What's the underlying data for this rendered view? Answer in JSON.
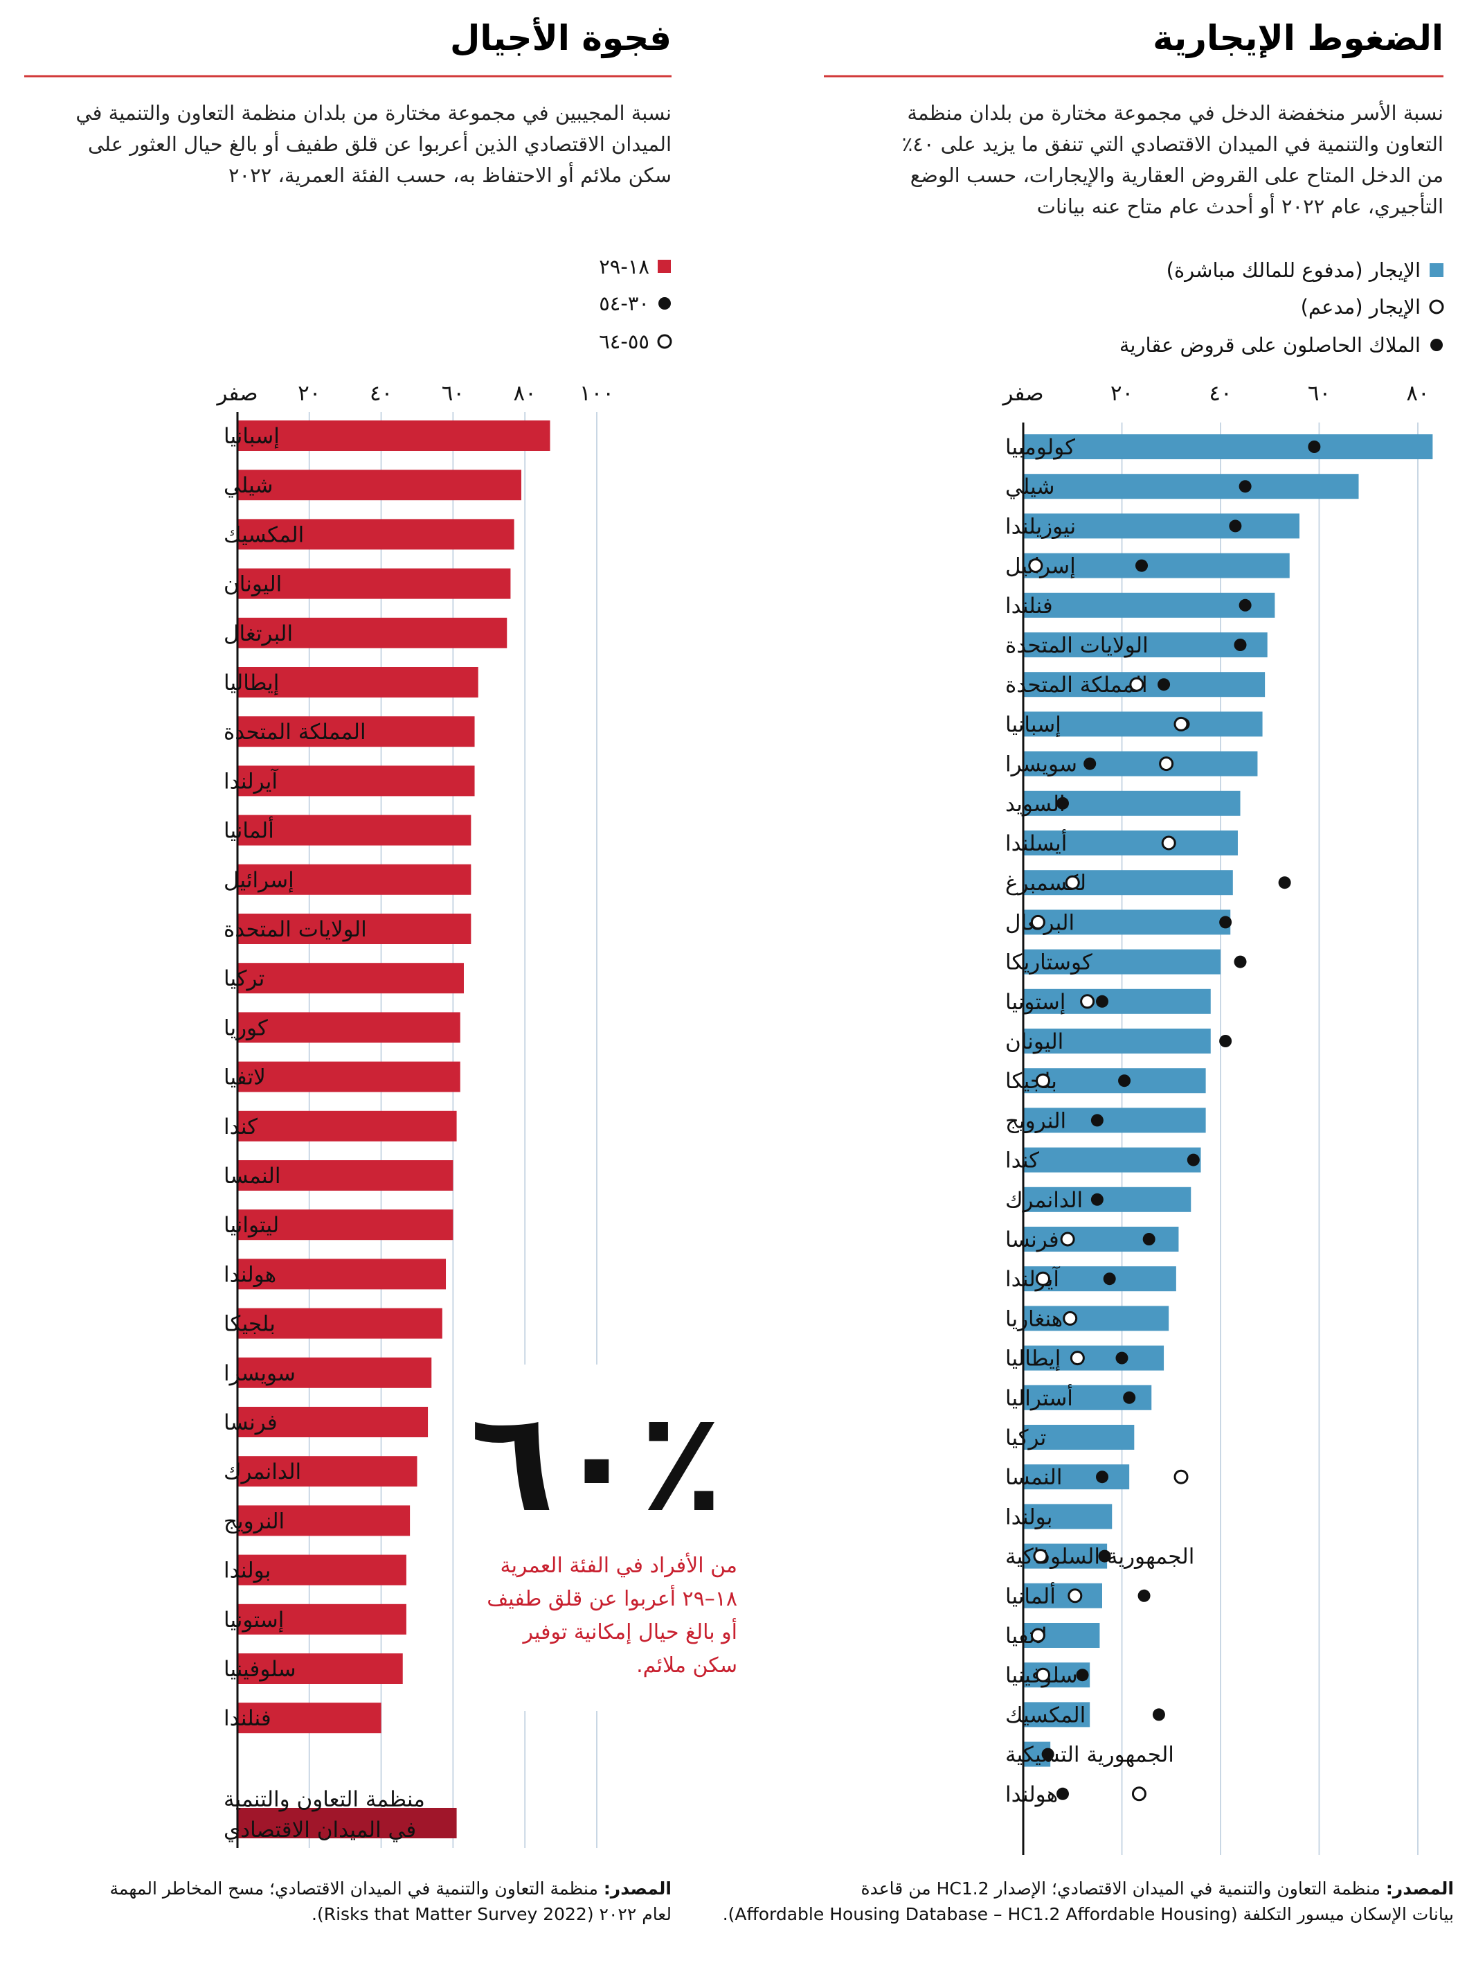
{
  "colors": {
    "rent_bar": "#4a98c2",
    "gen_bar": "#cc2336",
    "oecd_bar": "#a0162a",
    "rule": "#d23a3a",
    "grid": "#c9d7e4",
    "axis": "#111111"
  },
  "left_panel": {
    "title": "فجوة الأجيال",
    "subtitle_lines": [
      "نسبة المجيبين في مجموعة مختارة من بلدان منظمة التعاون والتنمية في",
      "الميدان الاقتصادي الذين أعربوا عن قلق طفيف أو بالغ حيال العثور على",
      "سكن ملائم أو الاحتفاظ به، حسب الفئة العمرية، ٢٠٢٢"
    ],
    "legend": [
      "١٨-٢٩",
      "٣٠-٥٤",
      "٥٥-٦٤"
    ],
    "callout": {
      "number": "٪٦٠",
      "lines": [
        "من الأفراد في الفئة العمرية",
        "١٨–٢٩ أعربوا عن قلق طفيف",
        "أو بالغ حيال إمكانية توفير",
        "سكن ملائم."
      ]
    },
    "source_label": "المصدر:",
    "source_lines": [
      "منظمة التعاون والتنمية في الميدان الاقتصادي؛ مسح المخاطر المهمة",
      "لعام ٢٠٢٢ (Risks that Matter Survey 2022)."
    ]
  },
  "right_panel": {
    "title": "الضغوط الإيجارية",
    "subtitle_lines": [
      "نسبة الأسر منخفضة الدخل في مجموعة مختارة من بلدان منظمة",
      "التعاون والتنمية في الميدان الاقتصادي التي تنفق ما يزيد على ٤٠٪",
      "من الدخل المتاح على القروض العقارية والإيجارات، حسب الوضع",
      "التأجيري، عام ٢٠٢٢ أو أحدث عام متاح عنه بيانات"
    ],
    "legend": [
      "الإيجار (مدفوع للمالك مباشرة)",
      "الإيجار (مدعم)",
      "الملاك الحاصلون على قروض عقارية"
    ],
    "source_label": "المصدر:",
    "source_lines": [
      "منظمة التعاون والتنمية في الميدان الاقتصادي؛ الإصدار HC1.2 من قاعدة",
      "بيانات الإسكان ميسور التكلفة (Affordable Housing Database – HC1.2 Affordable Housing)."
    ]
  },
  "chart_data": [
    {
      "type": "bar",
      "title": "فجوة الأجيال",
      "orientation": "horizontal",
      "xlim": [
        0,
        100
      ],
      "tick_values": [
        0,
        20,
        40,
        60,
        80,
        100
      ],
      "tick_labels": [
        "صفر",
        "٢٠",
        "٤٠",
        "٦٠",
        "٨٠",
        "١٠٠"
      ],
      "legend": [
        "١٨-٢٩",
        "٣٠-٥٤",
        "٥٥-٦٤"
      ],
      "grid": true,
      "categories": [
        "إسبانيا",
        "شيلي",
        "المكسيك",
        "اليونان",
        "البرتغال",
        "إيطاليا",
        "المملكة المتحدة",
        "آيرلندا",
        "ألمانيا",
        "إسرائيل",
        "الولايات المتحدة",
        "تركيا",
        "كوريا",
        "لاتفيا",
        "كندا",
        "النمسا",
        "ليتوانيا",
        "هولندا",
        "بلجيكا",
        "سويسرا",
        "فرنسا",
        "الدانمرك",
        "النرويج",
        "بولندا",
        "إستونيا",
        "سلوفينيا",
        "فنلندا"
      ],
      "series": [
        {
          "name": "١٨-٢٩",
          "values": [
            87,
            79,
            77,
            76,
            75,
            67,
            66,
            66,
            65,
            65,
            65,
            63,
            62,
            62,
            61,
            60,
            60,
            58,
            57,
            54,
            53,
            50,
            48,
            47,
            47,
            46,
            40
          ]
        }
      ],
      "aggregate": {
        "label": "منظمة التعاون والتنمية في الميدان الاقتصادي",
        "value": 61
      }
    },
    {
      "type": "bar",
      "title": "الضغوط الإيجارية",
      "orientation": "horizontal",
      "xlim": [
        0,
        80
      ],
      "tick_values": [
        0,
        20,
        40,
        60,
        80
      ],
      "tick_labels": [
        "صفر",
        "٢٠",
        "٤٠",
        "٦٠",
        "٨٠"
      ],
      "grid": true,
      "categories": [
        "كولومبيا",
        "شيلي",
        "نيوزيلندا",
        "إسرائيل",
        "فنلندا",
        "الولايات المتحدة",
        "المملكة المتحدة",
        "إسبانيا",
        "سويسرا",
        "السويد",
        "أيسلندا",
        "لكسمبرغ",
        "البرتغال",
        "كوستاريكا",
        "إستونيا",
        "اليونان",
        "بلجيكا",
        "النرويج",
        "كندا",
        "الدانمرك",
        "فرنسا",
        "آيرلندا",
        "هنغاريا",
        "إيطاليا",
        "أستراليا",
        "تركيا",
        "النمسا",
        "بولندا",
        "الجمهورية السلوفاكية",
        "ألمانيا",
        "لاتفيا",
        "سلوفينيا",
        "المكسيك",
        "الجمهورية التشيكية",
        "هولندا"
      ],
      "series": [
        {
          "name": "الإيجار (مدفوع للمالك مباشرة)",
          "values": [
            83,
            68,
            56,
            54,
            51,
            49.5,
            49,
            48.5,
            47.5,
            44,
            43.5,
            42.5,
            42,
            40,
            38,
            38,
            37,
            37,
            36,
            34,
            31.5,
            31,
            29.5,
            28.5,
            26,
            22.5,
            21.5,
            18,
            17,
            16,
            15.5,
            13.5,
            13.5,
            5.5,
            null
          ]
        },
        {
          "name": "الإيجار (مدعم)",
          "values": [
            null,
            null,
            null,
            2.5,
            null,
            null,
            23,
            32,
            29,
            null,
            29.5,
            10,
            3,
            null,
            13,
            null,
            4,
            null,
            null,
            null,
            9,
            4,
            9.5,
            11,
            null,
            null,
            32,
            null,
            3.5,
            10.5,
            3,
            4,
            null,
            null,
            23.5
          ]
        },
        {
          "name": "الملاك الحاصلون على قروض عقارية",
          "values": [
            59,
            45,
            43,
            24,
            45,
            44,
            28.5,
            32.5,
            13.5,
            8,
            null,
            53,
            41,
            44,
            16,
            41,
            20.5,
            15,
            34.5,
            15,
            25.5,
            17.5,
            9.5,
            20,
            21.5,
            null,
            16,
            null,
            16.5,
            24.5,
            null,
            12,
            27.5,
            5,
            8
          ]
        }
      ]
    }
  ]
}
